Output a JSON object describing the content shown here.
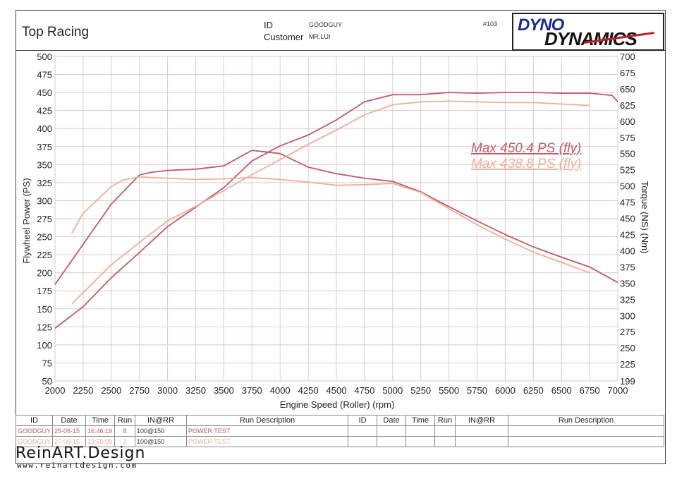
{
  "header": {
    "title": "Top Racing",
    "id_label": "ID",
    "id_value": "GOODGUY",
    "customer_label": "Customer",
    "customer_value": "MR.LUI",
    "run_number": "#103",
    "logo_line1": "DYNO",
    "logo_line2": "DYNAMICS"
  },
  "chart_data": {
    "type": "line",
    "xlabel": "Engine Speed (Roller) (rpm)",
    "ylabel": "Flywheel Power (PS)",
    "y2label": "Torque (NS) (Nm)",
    "xlim": [
      2000,
      7000
    ],
    "ylim": [
      50,
      500
    ],
    "y2lim": [
      199,
      700
    ],
    "x_ticks": [
      "2000",
      "2250",
      "2500",
      "2750",
      "3000",
      "3250",
      "3500",
      "3750",
      "4000",
      "4250",
      "4500",
      "4750",
      "5000",
      "5250",
      "5500",
      "5750",
      "6000",
      "6250",
      "6500",
      "6750",
      "7000"
    ],
    "y_ticks": [
      "50",
      "75",
      "100",
      "125",
      "150",
      "175",
      "200",
      "225",
      "250",
      "275",
      "300",
      "325",
      "350",
      "375",
      "400",
      "425",
      "450",
      "475",
      "500"
    ],
    "y2_ticks": [
      "199",
      "225",
      "250",
      "275",
      "300",
      "325",
      "350",
      "375",
      "400",
      "425",
      "450",
      "475",
      "500",
      "525",
      "550",
      "575",
      "600",
      "625",
      "650",
      "675",
      "700"
    ],
    "grid": true,
    "annotations": [
      "Max 450.4 PS (fly)",
      "Max 438.8 PS (fly)"
    ],
    "colors": {
      "run1": "#c25a6a",
      "run2": "#eeaf98"
    },
    "series": [
      {
        "run": 1,
        "measure": "power",
        "axis": "left",
        "x": [
          2000,
          2250,
          2500,
          2750,
          3000,
          3250,
          3500,
          3750,
          4000,
          4250,
          4500,
          4750,
          5000,
          5250,
          5500,
          5750,
          6000,
          6250,
          6500,
          6750,
          6950,
          7000
        ],
        "values": [
          123,
          153,
          193,
          228,
          264,
          291,
          318,
          355,
          376,
          391,
          412,
          437,
          447,
          447,
          450,
          449,
          450,
          450,
          449,
          449,
          446,
          437
        ]
      },
      {
        "run": 1,
        "measure": "torque",
        "axis": "right",
        "x": [
          2000,
          2250,
          2500,
          2750,
          2850,
          3000,
          3250,
          3500,
          3750,
          4000,
          4250,
          4500,
          4750,
          5000,
          5250,
          5500,
          5750,
          6000,
          6250,
          6500,
          6750,
          7000
        ],
        "values": [
          348,
          410,
          472,
          517,
          521,
          524,
          526,
          531,
          555,
          550,
          529,
          519,
          512,
          507,
          491,
          468,
          446,
          425,
          406,
          390,
          375,
          351
        ]
      },
      {
        "run": 2,
        "measure": "power",
        "axis": "left",
        "x": [
          2150,
          2500,
          2750,
          3000,
          3250,
          3500,
          3750,
          4000,
          4250,
          4500,
          4750,
          5000,
          5250,
          5500,
          5750,
          6000,
          6250,
          6500,
          6750
        ],
        "values": [
          157,
          211,
          242,
          272,
          292,
          314,
          336,
          357,
          378,
          398,
          419,
          433,
          437,
          438,
          437,
          436,
          436,
          434,
          432
        ]
      },
      {
        "run": 2,
        "measure": "torque",
        "axis": "right",
        "x": [
          2150,
          2250,
          2500,
          2600,
          2750,
          3000,
          3250,
          3500,
          3750,
          4000,
          4250,
          4500,
          4750,
          5000,
          5250,
          5500,
          5750,
          6000,
          6250,
          6500,
          6750
        ],
        "values": [
          427,
          458,
          499,
          509,
          514,
          512,
          510,
          511,
          513,
          510,
          506,
          501,
          502,
          504,
          490,
          465,
          440,
          418,
          398,
          382,
          366
        ]
      }
    ]
  },
  "runs_table": {
    "headers": [
      "ID",
      "Date",
      "Time",
      "Run",
      "IN@RR",
      "Run Description",
      "ID",
      "Date",
      "Time",
      "Run",
      "IN@RR",
      "Run Description"
    ],
    "rows": [
      [
        "GOODGUY",
        "25-08-15",
        "16:46:19",
        "8",
        "100@150",
        "POWER TEST"
      ],
      [
        "GOODGUY",
        "27-05-15",
        "13:55:08",
        "1",
        "100@150",
        "POWER TEST"
      ]
    ]
  },
  "watermark": {
    "brand": "ReinART.Design",
    "url": "www.reinartdesign.com"
  }
}
